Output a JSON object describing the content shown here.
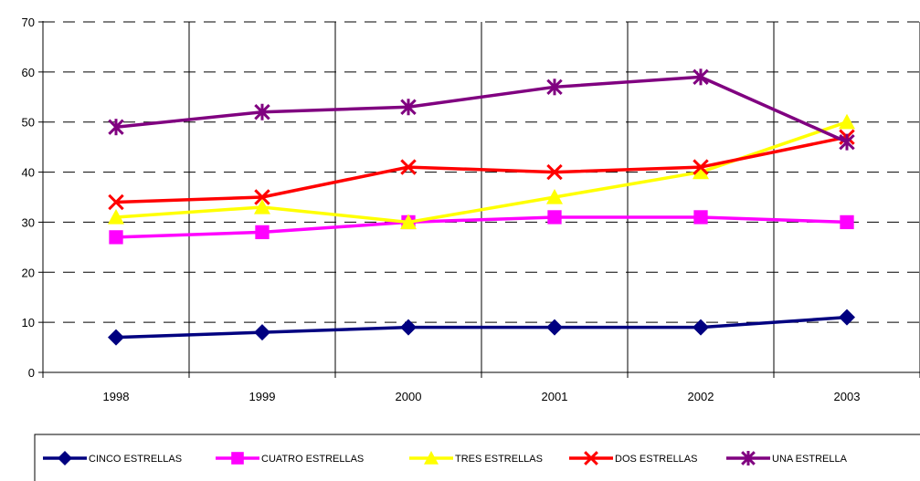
{
  "chart_data": {
    "type": "line",
    "categories": [
      "1998",
      "1999",
      "2000",
      "2001",
      "2002",
      "2003"
    ],
    "ylim": [
      0,
      70
    ],
    "yticks": [
      0,
      10,
      20,
      30,
      40,
      50,
      60,
      70
    ],
    "grid": true,
    "gridStyle": "dashed horizontal, solid vertical",
    "legend_position": "bottom",
    "series": [
      {
        "name": "CINCO ESTRELLAS",
        "color": "#000080",
        "marker": "diamond",
        "values": [
          7,
          8,
          9,
          9,
          9,
          11
        ]
      },
      {
        "name": "CUATRO ESTRELLAS",
        "color": "#FF00FF",
        "marker": "square",
        "values": [
          27,
          28,
          30,
          31,
          31,
          30
        ]
      },
      {
        "name": "TRES ESTRELLAS",
        "color": "#FFFF00",
        "marker": "triangle",
        "values": [
          31,
          33,
          30,
          35,
          40,
          50
        ]
      },
      {
        "name": "DOS ESTRELLAS",
        "color": "#FF0000",
        "marker": "x",
        "values": [
          34,
          35,
          41,
          40,
          41,
          47
        ]
      },
      {
        "name": "UNA ESTRELLA",
        "color": "#800080",
        "marker": "star",
        "values": [
          49,
          52,
          53,
          57,
          59,
          46
        ]
      }
    ]
  }
}
